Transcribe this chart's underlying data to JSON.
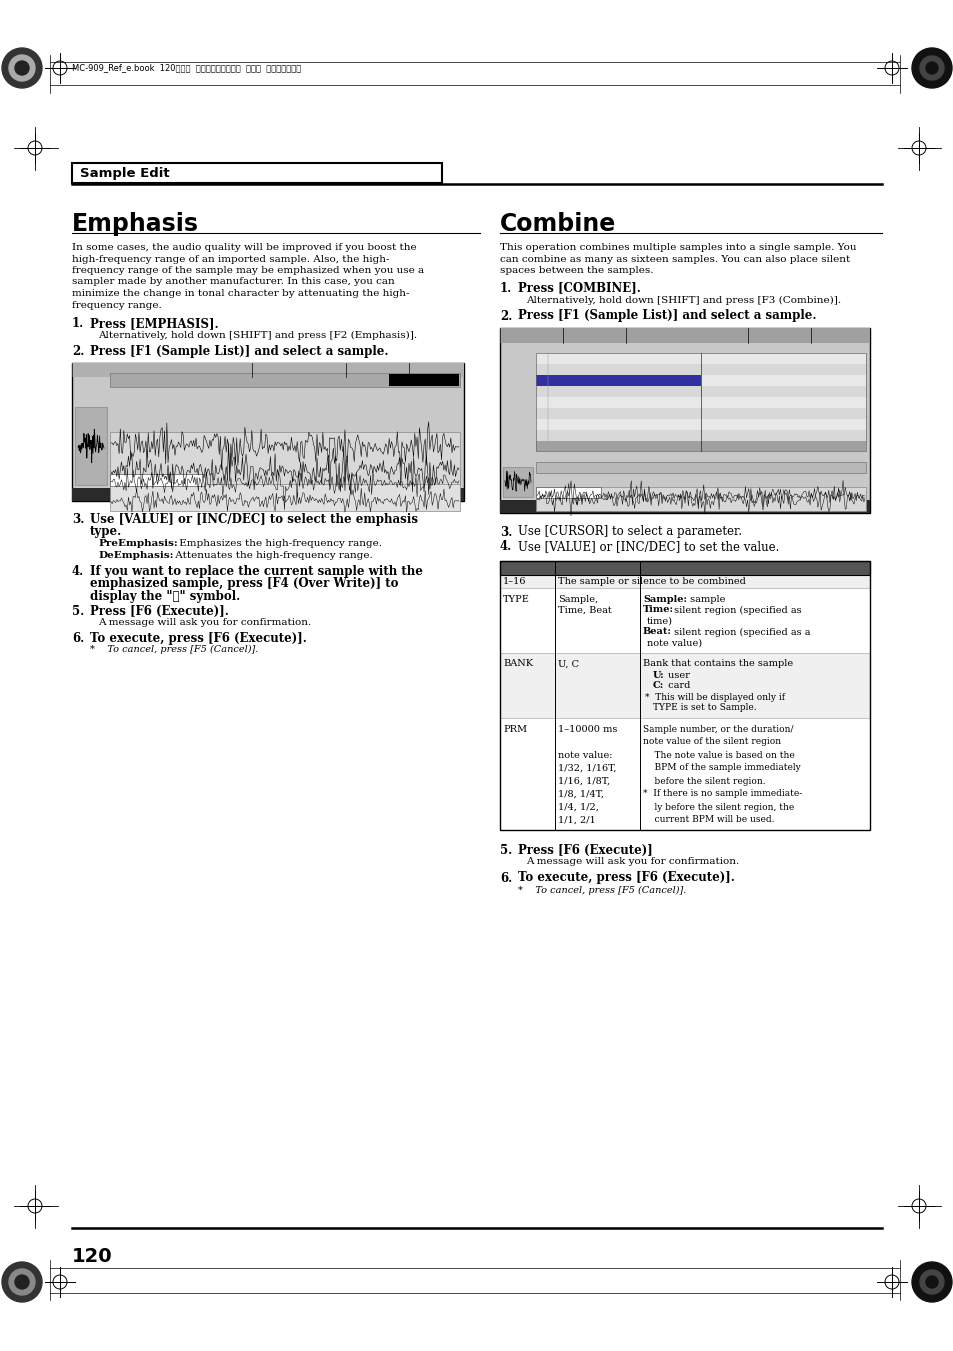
{
  "page_bg": "#ffffff",
  "header_text": "MC-909_Ref_e.book  120ページ  ２００５年３月１日  火曜日  午後３時２９分",
  "section_title": "Sample Edit",
  "left_title": "Emphasis",
  "right_title": "Combine",
  "left_body": [
    "In some cases, the audio quality will be improved if you boost the",
    "high-frequency range of an imported sample. Also, the high-",
    "frequency range of the sample may be emphasized when you use a",
    "sampler made by another manufacturer. In this case, you can",
    "minimize the change in tonal character by attenuating the high-",
    "frequency range."
  ],
  "right_body": [
    "This operation combines multiple samples into a single sample. You",
    "can combine as many as sixteen samples. You can also place silent",
    "spaces between the samples."
  ],
  "page_number": "120"
}
